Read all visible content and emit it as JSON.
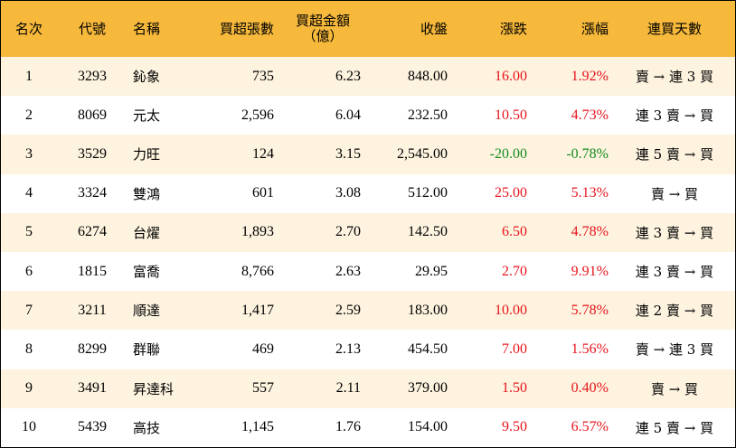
{
  "headers": {
    "rank": "名次",
    "code": "代號",
    "name": "名稱",
    "net_lots": "買超張數",
    "net_amount": "買超金額",
    "net_amount_unit": "（億）",
    "close": "收盤",
    "change": "漲跌",
    "change_pct": "漲幅",
    "streak": "連買天數"
  },
  "rows": [
    {
      "rank": "1",
      "code": "3293",
      "name": "鈊象",
      "net_lots": "735",
      "net_amount": "6.23",
      "close": "848.00",
      "change": "16.00",
      "change_pct": "1.92%",
      "streak": "賣 → 連 3 買",
      "direction": "up"
    },
    {
      "rank": "2",
      "code": "8069",
      "name": "元太",
      "net_lots": "2,596",
      "net_amount": "6.04",
      "close": "232.50",
      "change": "10.50",
      "change_pct": "4.73%",
      "streak": "連 3 賣 → 買",
      "direction": "up"
    },
    {
      "rank": "3",
      "code": "3529",
      "name": "力旺",
      "net_lots": "124",
      "net_amount": "3.15",
      "close": "2,545.00",
      "change": "-20.00",
      "change_pct": "-0.78%",
      "streak": "連 5 賣 → 買",
      "direction": "down"
    },
    {
      "rank": "4",
      "code": "3324",
      "name": "雙鴻",
      "net_lots": "601",
      "net_amount": "3.08",
      "close": "512.00",
      "change": "25.00",
      "change_pct": "5.13%",
      "streak": "賣 → 買",
      "direction": "up"
    },
    {
      "rank": "5",
      "code": "6274",
      "name": "台燿",
      "net_lots": "1,893",
      "net_amount": "2.70",
      "close": "142.50",
      "change": "6.50",
      "change_pct": "4.78%",
      "streak": "連 3 賣 → 買",
      "direction": "up"
    },
    {
      "rank": "6",
      "code": "1815",
      "name": "富喬",
      "net_lots": "8,766",
      "net_amount": "2.63",
      "close": "29.95",
      "change": "2.70",
      "change_pct": "9.91%",
      "streak": "連 3 賣 → 買",
      "direction": "up"
    },
    {
      "rank": "7",
      "code": "3211",
      "name": "順達",
      "net_lots": "1,417",
      "net_amount": "2.59",
      "close": "183.00",
      "change": "10.00",
      "change_pct": "5.78%",
      "streak": "連 2 賣 → 買",
      "direction": "up"
    },
    {
      "rank": "8",
      "code": "8299",
      "name": "群聯",
      "net_lots": "469",
      "net_amount": "2.13",
      "close": "454.50",
      "change": "7.00",
      "change_pct": "1.56%",
      "streak": "賣 → 連 3 買",
      "direction": "up"
    },
    {
      "rank": "9",
      "code": "3491",
      "name": "昇達科",
      "net_lots": "557",
      "net_amount": "2.11",
      "close": "379.00",
      "change": "1.50",
      "change_pct": "0.40%",
      "streak": "賣 → 買",
      "direction": "up"
    },
    {
      "rank": "10",
      "code": "5439",
      "name": "高技",
      "net_lots": "1,145",
      "net_amount": "1.76",
      "close": "154.00",
      "change": "9.50",
      "change_pct": "6.57%",
      "streak": "連 5 賣 → 買",
      "direction": "up"
    }
  ],
  "colors": {
    "header_bg": "#f6b93b",
    "odd_row_bg": "#fdf3df",
    "up": "#e8141c",
    "down": "#148c1e"
  }
}
